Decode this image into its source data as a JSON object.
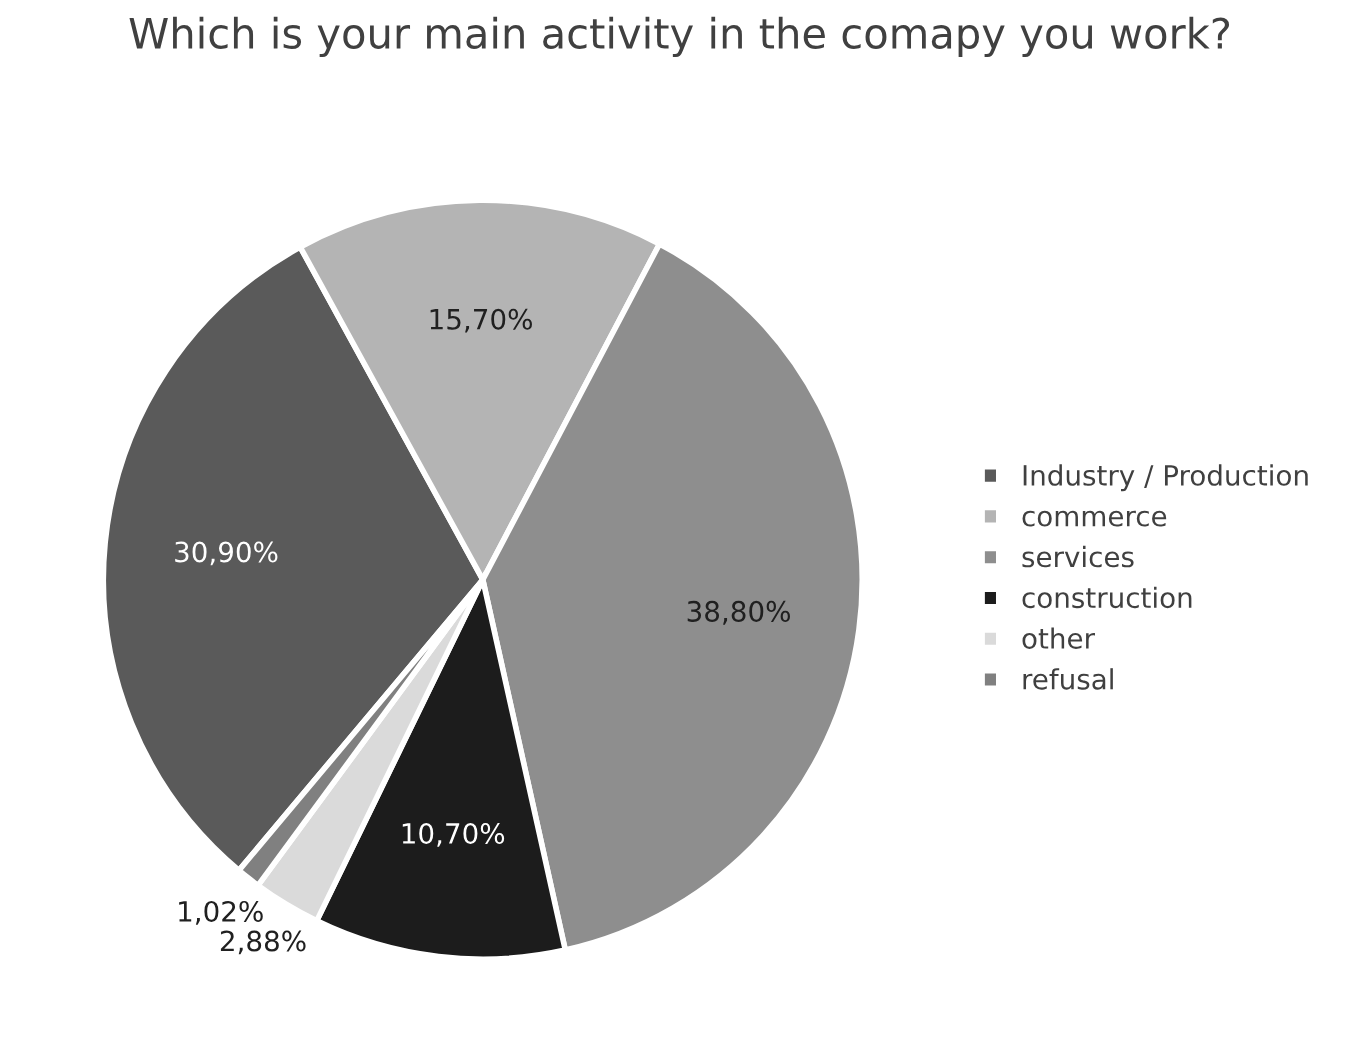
{
  "chart_data": {
    "type": "pie",
    "title": "Which is your main activity in the comapy you work?",
    "categories": [
      "Industry / Production",
      "commerce",
      "services",
      "construction",
      "other",
      "refusal"
    ],
    "values": [
      30.9,
      15.7,
      38.8,
      10.7,
      2.88,
      1.02
    ],
    "value_labels": [
      "30,90%",
      "15,70%",
      "38,80%",
      "10,70%",
      "2,88%",
      "1,02%"
    ],
    "colors": [
      "#5a5a5a",
      "#b4b4b4",
      "#8e8e8e",
      "#1c1c1c",
      "#dadada",
      "#808080"
    ],
    "legend": "right"
  }
}
